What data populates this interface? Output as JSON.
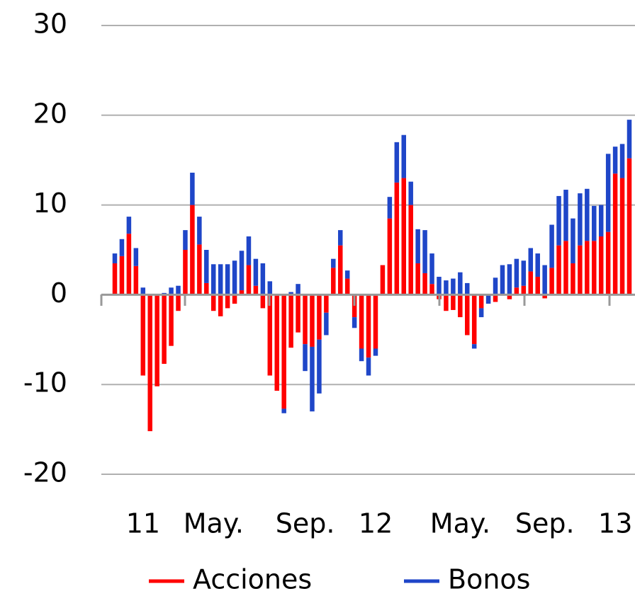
{
  "chart_data": {
    "type": "bar",
    "stacked": true,
    "categories": [
      null,
      null,
      "11",
      null,
      null,
      null,
      null,
      null,
      null,
      null,
      null,
      null,
      "May.",
      null,
      null,
      null,
      null,
      null,
      null,
      null,
      null,
      null,
      null,
      null,
      null,
      "Sep.",
      null,
      null,
      null,
      null,
      null,
      null,
      null,
      null,
      null,
      "12",
      null,
      null,
      null,
      null,
      null,
      null,
      null,
      null,
      null,
      null,
      null,
      "May.",
      null,
      null,
      null,
      null,
      null,
      null,
      null,
      null,
      null,
      null,
      null,
      "Sep.",
      null,
      null,
      null,
      null,
      null,
      null,
      null,
      null,
      null,
      "13",
      null,
      null,
      null,
      null
    ],
    "series": [
      {
        "name": "Acciones",
        "color": "#ff0000",
        "values": [
          3.5,
          4.3,
          6.8,
          3.2,
          -9.0,
          -15.2,
          -10.2,
          -7.7,
          -5.7,
          -1.8,
          5.0,
          10.0,
          5.6,
          1.3,
          -1.8,
          -2.4,
          -1.5,
          -1.0,
          0.5,
          3.3,
          1.0,
          -1.5,
          -9.0,
          -10.7,
          -12.7,
          -5.9,
          -4.2,
          -5.5,
          -5.8,
          -5.0,
          -2.0,
          3.0,
          5.5,
          1.8,
          -2.5,
          -6.0,
          -7.0,
          -6.0,
          3.3,
          8.5,
          12.5,
          13.0,
          10.0,
          3.5,
          2.4,
          1.2,
          -0.5,
          -1.8,
          -1.7,
          -2.5,
          -4.5,
          -5.5,
          -1.5,
          0,
          -0.8,
          0,
          -0.5,
          0.8,
          1.0,
          2.6,
          2.0,
          -0.4,
          3.0,
          5.5,
          6.0,
          3.5,
          5.5,
          6.0,
          6.0,
          6.5,
          7.0,
          13.5,
          13.0,
          15.2
        ]
      },
      {
        "name": "Bonos",
        "color": "#1f46c8",
        "values": [
          1.1,
          1.9,
          1.9,
          2.0,
          0.8,
          0,
          0,
          0.2,
          0.8,
          1.0,
          2.2,
          3.6,
          3.1,
          3.7,
          3.4,
          3.4,
          3.4,
          3.8,
          4.4,
          3.2,
          3.0,
          3.5,
          1.5,
          0,
          -0.5,
          0.3,
          1.2,
          -3.0,
          -7.2,
          -6.0,
          -2.5,
          1.0,
          1.7,
          0.9,
          -1.2,
          -1.4,
          -2.0,
          -0.8,
          0,
          2.4,
          4.5,
          4.8,
          2.6,
          3.8,
          4.8,
          3.4,
          2.0,
          1.6,
          1.8,
          2.5,
          1.3,
          -0.5,
          -1.0,
          -1.0,
          1.9,
          3.3,
          3.4,
          3.2,
          2.8,
          2.6,
          2.6,
          3.3,
          4.8,
          5.5,
          5.7,
          5.0,
          5.8,
          5.8,
          3.9,
          3.5,
          8.7,
          3.0,
          3.8,
          4.3
        ]
      }
    ],
    "ylim": [
      -20,
      30
    ],
    "yticks": [
      -20,
      -10,
      0,
      10,
      20,
      30
    ],
    "grid": true,
    "legend": "bottom"
  }
}
